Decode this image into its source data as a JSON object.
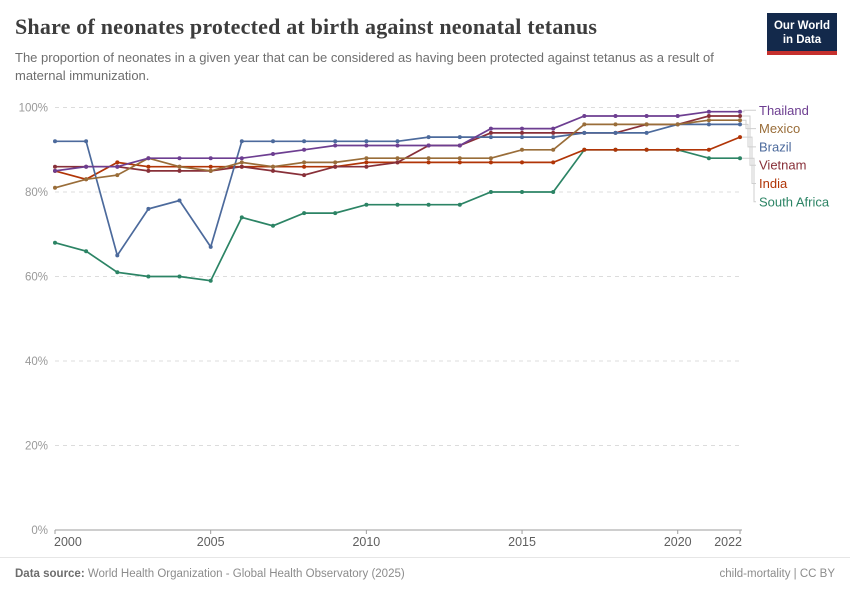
{
  "header": {
    "title": "Share of neonates protected at birth against neonatal tetanus",
    "subtitle": "The proportion of neonates in a given year that can be considered as having been protected against tetanus as a result of maternal immunization."
  },
  "logo": {
    "line1": "Our World",
    "line2": "in Data",
    "bg": "#13294b",
    "bar": "#c5302d"
  },
  "footer": {
    "source_label": "Data source:",
    "source_text": "World Health Organization - Global Health Observatory (2025)",
    "note_right": "child-mortality | CC BY"
  },
  "chart_data": {
    "type": "line",
    "title": "Share of neonates protected at birth against neonatal tetanus",
    "ylabel": "",
    "xlabel": "",
    "ylim": [
      0,
      100
    ],
    "grid": "horizontal-dashed",
    "legend_position": "right",
    "x": [
      2000,
      2001,
      2002,
      2003,
      2004,
      2005,
      2006,
      2007,
      2008,
      2009,
      2010,
      2011,
      2012,
      2013,
      2014,
      2015,
      2016,
      2017,
      2018,
      2019,
      2020,
      2021,
      2022
    ],
    "xticks": [
      {
        "v": 2000,
        "label": "2000"
      },
      {
        "v": 2005,
        "label": "2005"
      },
      {
        "v": 2010,
        "label": "2010"
      },
      {
        "v": 2015,
        "label": "2015"
      },
      {
        "v": 2020,
        "label": "2020"
      },
      {
        "v": 2022,
        "label": "2022"
      }
    ],
    "yticks": [
      {
        "v": 0,
        "label": "0%"
      },
      {
        "v": 20,
        "label": "20%"
      },
      {
        "v": 40,
        "label": "40%"
      },
      {
        "v": 60,
        "label": "60%"
      },
      {
        "v": 80,
        "label": "80%"
      },
      {
        "v": 100,
        "label": "100%"
      }
    ],
    "series": [
      {
        "name": "Thailand",
        "color": "#6d3e91",
        "values": [
          85,
          86,
          86,
          88,
          88,
          88,
          88,
          89,
          90,
          91,
          91,
          91,
          91,
          91,
          95,
          95,
          95,
          98,
          98,
          98,
          98,
          99,
          99
        ]
      },
      {
        "name": "Mexico",
        "color": "#996d39",
        "values": [
          81,
          83,
          84,
          88,
          86,
          85,
          87,
          86,
          87,
          87,
          88,
          88,
          88,
          88,
          88,
          90,
          90,
          96,
          96,
          96,
          96,
          97,
          97
        ]
      },
      {
        "name": "Brazil",
        "color": "#4c6a9c",
        "values": [
          92,
          92,
          65,
          76,
          78,
          67,
          92,
          92,
          92,
          92,
          92,
          92,
          93,
          93,
          93,
          93,
          93,
          94,
          94,
          94,
          96,
          96,
          96
        ]
      },
      {
        "name": "Vietnam",
        "color": "#883039",
        "values": [
          86,
          86,
          86,
          85,
          85,
          85,
          86,
          85,
          84,
          86,
          86,
          87,
          91,
          91,
          94,
          94,
          94,
          94,
          94,
          96,
          96,
          98,
          98
        ]
      },
      {
        "name": "India",
        "color": "#b13507",
        "values": [
          85,
          83,
          87,
          86,
          86,
          86,
          86,
          86,
          86,
          86,
          87,
          87,
          87,
          87,
          87,
          87,
          87,
          90,
          90,
          90,
          90,
          90,
          93
        ]
      },
      {
        "name": "South Africa",
        "color": "#2c8465",
        "values": [
          68,
          66,
          61,
          60,
          60,
          59,
          74,
          72,
          75,
          75,
          77,
          77,
          77,
          77,
          80,
          80,
          80,
          90,
          90,
          90,
          90,
          88,
          88
        ]
      }
    ]
  }
}
